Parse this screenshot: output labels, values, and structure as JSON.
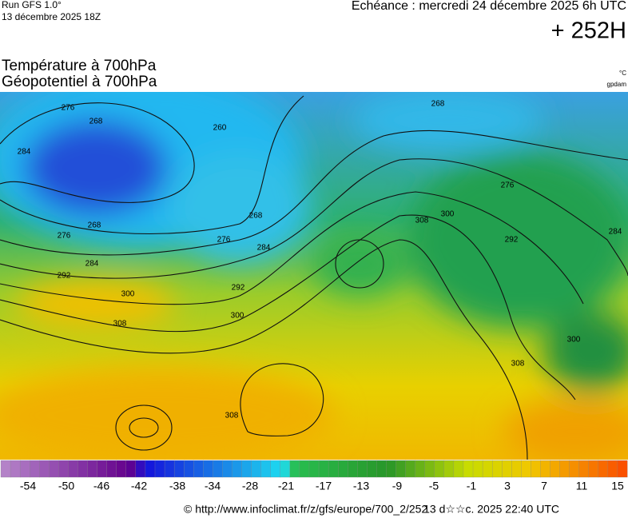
{
  "header": {
    "run": "Run GFS 1.0°",
    "run_date": "13 décembre 2025 18Z",
    "forecast": "Echéance : mercredi 24 décembre 2025 6h UTC",
    "lead": "+ 252H",
    "title_line1": "Température à 700hPa",
    "title_line2": "Géopotentiel à 700hPa",
    "unit_temp": "°C",
    "unit_geo": "gpdam"
  },
  "map": {
    "contour_labels": [
      276,
      268,
      260,
      284,
      268,
      276,
      284,
      292,
      300,
      308,
      276,
      284,
      292,
      300,
      268,
      308,
      300,
      292,
      284,
      276,
      268,
      300,
      308,
      308
    ]
  },
  "colorbar": {
    "labels": [
      -54,
      -50,
      -46,
      -42,
      -38,
      -34,
      -28,
      -21,
      -17,
      -13,
      -9,
      -5,
      -1,
      3,
      7,
      11,
      15
    ]
  },
  "footer": {
    "source": "© http://www.infoclimat.fr/z/gfs/europe/700_2/252",
    "generated": "13 d☆☆c. 2025 22:40 UTC"
  }
}
